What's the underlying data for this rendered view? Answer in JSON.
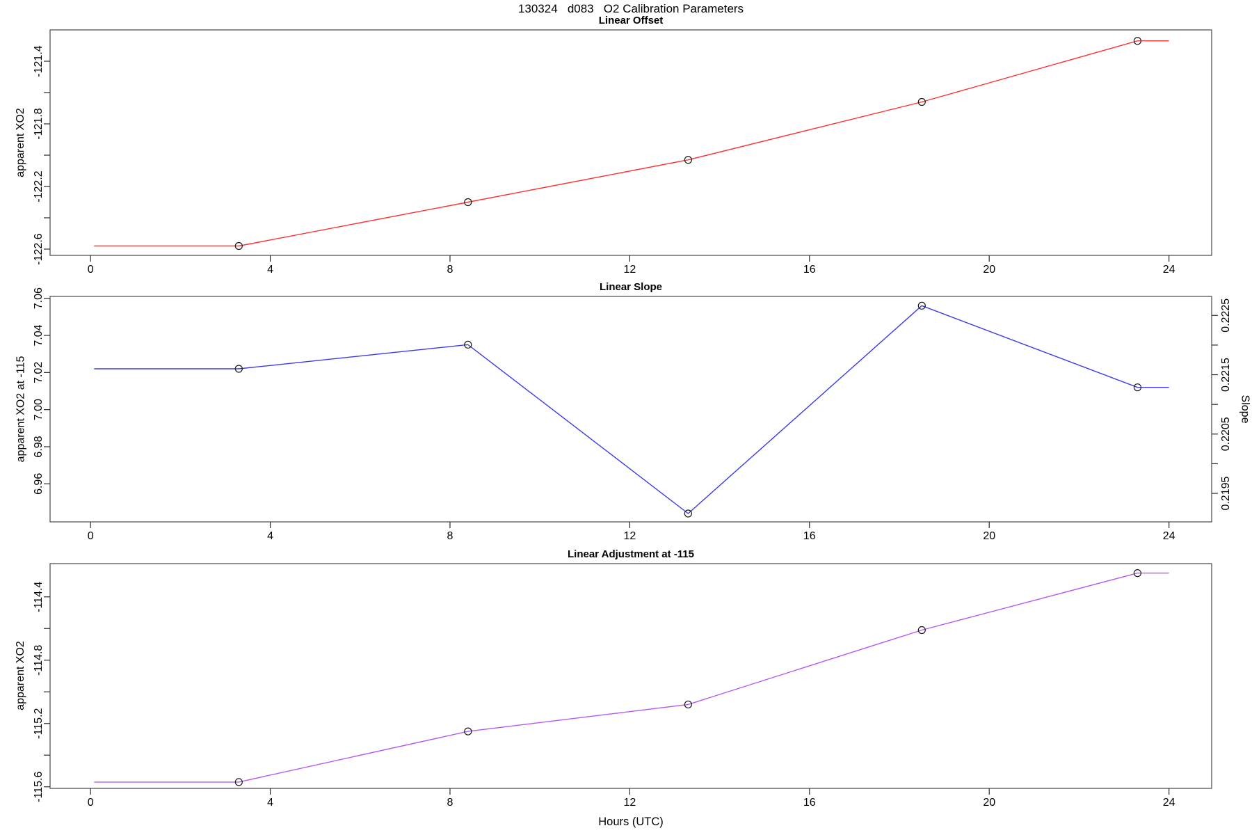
{
  "page_title": "130324   d083   O2 Calibration Parameters",
  "xlabel": "Hours (UTC)",
  "colors": {
    "offset_line": "#ff3030",
    "slope_line": "#3a3ae8",
    "adjustment_line": "#b558ef",
    "marker_stroke": "#1a1a1a",
    "box_stroke": "#484848",
    "tick_stroke": "#2a2a2a",
    "text": "#000000"
  },
  "chart_data": [
    {
      "type": "line",
      "title": "Linear Offset",
      "ylabel": "apparent XO2",
      "color_key": "offset_line",
      "marker": "circle-open",
      "x": [
        3.3,
        8.4,
        13.3,
        18.5,
        23.3
      ],
      "y": [
        -122.58,
        -122.3,
        -122.03,
        -121.66,
        -121.27
      ],
      "flat_ends_x": [
        0.08,
        24.0
      ],
      "xlim": [
        -0.9,
        24.95
      ],
      "ylim": [
        -122.64,
        -121.2
      ],
      "xticks": [
        {
          "v": 0,
          "label": "0"
        },
        {
          "v": 4,
          "label": "4"
        },
        {
          "v": 8,
          "label": "8"
        },
        {
          "v": 12,
          "label": "12"
        },
        {
          "v": 16,
          "label": "16"
        },
        {
          "v": 20,
          "label": "20"
        },
        {
          "v": 24,
          "label": "24"
        }
      ],
      "yticks": [
        {
          "v": -122.6,
          "label": "-122.6"
        },
        {
          "v": -122.4,
          "label": ""
        },
        {
          "v": -122.2,
          "label": "-122.2"
        },
        {
          "v": -122.0,
          "label": ""
        },
        {
          "v": -121.8,
          "label": "-121.8"
        },
        {
          "v": -121.6,
          "label": ""
        },
        {
          "v": -121.4,
          "label": "-121.4"
        }
      ]
    },
    {
      "type": "line",
      "title": "Linear Slope",
      "ylabel": "apparent XO2 at -115",
      "ylabel_right": "Slope",
      "color_key": "slope_line",
      "marker": "circle-open",
      "x": [
        3.3,
        8.4,
        13.3,
        18.5,
        23.3
      ],
      "y": [
        7.022,
        7.035,
        6.944,
        7.056,
        7.012
      ],
      "flat_ends_x": [
        0.08,
        24.0
      ],
      "xlim": [
        -0.9,
        24.95
      ],
      "ylim": [
        6.9395,
        7.061
      ],
      "ylim_right": [
        0.21902,
        0.22282
      ],
      "xticks": [
        {
          "v": 0,
          "label": "0"
        },
        {
          "v": 4,
          "label": "4"
        },
        {
          "v": 8,
          "label": "8"
        },
        {
          "v": 12,
          "label": "12"
        },
        {
          "v": 16,
          "label": "16"
        },
        {
          "v": 20,
          "label": "20"
        },
        {
          "v": 24,
          "label": "24"
        }
      ],
      "yticks": [
        {
          "v": 6.96,
          "label": "6.96"
        },
        {
          "v": 6.98,
          "label": "6.98"
        },
        {
          "v": 7.0,
          "label": "7.00"
        },
        {
          "v": 7.02,
          "label": "7.02"
        },
        {
          "v": 7.04,
          "label": "7.04"
        },
        {
          "v": 7.06,
          "label": "7.06"
        }
      ],
      "yticks_right": [
        {
          "v": 0.2195,
          "label": "0.2195"
        },
        {
          "v": 0.22,
          "label": ""
        },
        {
          "v": 0.2205,
          "label": "0.2205"
        },
        {
          "v": 0.221,
          "label": ""
        },
        {
          "v": 0.2215,
          "label": "0.2215"
        },
        {
          "v": 0.222,
          "label": ""
        },
        {
          "v": 0.2225,
          "label": "0.2225"
        }
      ]
    },
    {
      "type": "line",
      "title": "Linear Adjustment at -115",
      "ylabel": "apparent XO2",
      "color_key": "adjustment_line",
      "marker": "circle-open",
      "x": [
        3.3,
        8.4,
        13.3,
        18.5,
        23.3
      ],
      "y": [
        -115.57,
        -115.25,
        -115.08,
        -114.61,
        -114.25
      ],
      "flat_ends_x": [
        0.08,
        24.0
      ],
      "xlim": [
        -0.9,
        24.95
      ],
      "ylim": [
        -115.61,
        -114.19
      ],
      "xticks": [
        {
          "v": 0,
          "label": "0"
        },
        {
          "v": 4,
          "label": "4"
        },
        {
          "v": 8,
          "label": "8"
        },
        {
          "v": 12,
          "label": "12"
        },
        {
          "v": 16,
          "label": "16"
        },
        {
          "v": 20,
          "label": "20"
        },
        {
          "v": 24,
          "label": "24"
        }
      ],
      "yticks": [
        {
          "v": -115.6,
          "label": "-115.6"
        },
        {
          "v": -115.4,
          "label": ""
        },
        {
          "v": -115.2,
          "label": "-115.2"
        },
        {
          "v": -115.0,
          "label": ""
        },
        {
          "v": -114.8,
          "label": "-114.8"
        },
        {
          "v": -114.6,
          "label": ""
        },
        {
          "v": -114.4,
          "label": "-114.4"
        }
      ]
    }
  ]
}
